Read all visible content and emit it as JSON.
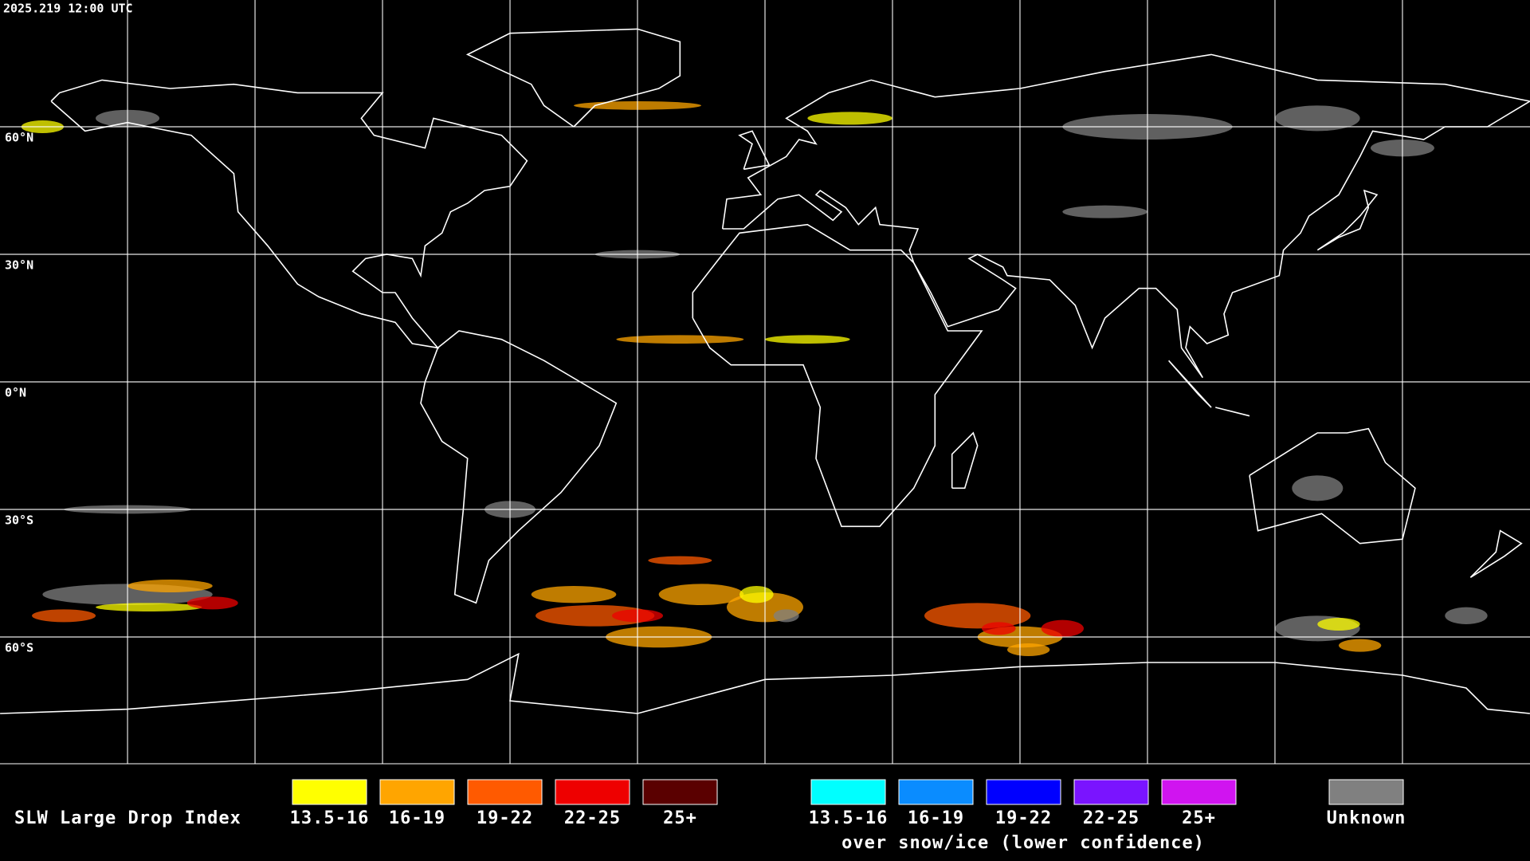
{
  "header": {
    "timestamp": "2025.219 12:00 UTC"
  },
  "map": {
    "latitude_labels": [
      "60°N",
      "30°N",
      "0°N",
      "30°S",
      "60°S"
    ]
  },
  "legend": {
    "title": "SLW Large Drop Index",
    "groups": [
      {
        "items": [
          {
            "label": "13.5-16",
            "color": "#ffff00"
          },
          {
            "label": "16-19",
            "color": "#ffa500"
          },
          {
            "label": "19-22",
            "color": "#ff5a00"
          },
          {
            "label": "22-25",
            "color": "#ee0000"
          },
          {
            "label": "25+",
            "color": "#5a0000"
          }
        ]
      },
      {
        "items": [
          {
            "label": "13.5-16",
            "color": "#00ffff"
          },
          {
            "label": "16-19",
            "color": "#0a8cff"
          },
          {
            "label": "19-22",
            "color": "#0000ff"
          },
          {
            "label": "22-25",
            "color": "#7a14ff"
          },
          {
            "label": "25+",
            "color": "#d014f0"
          }
        ]
      }
    ],
    "snow_note": "over snow/ice (lower confidence)",
    "unknown": {
      "label": "Unknown",
      "color": "#808080"
    }
  }
}
